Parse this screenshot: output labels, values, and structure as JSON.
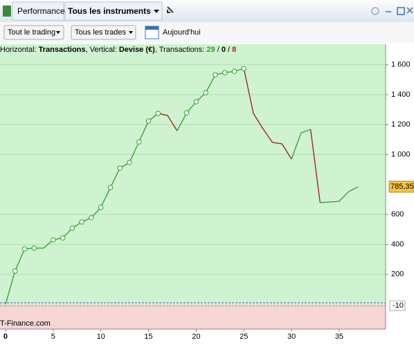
{
  "toolbar": {
    "tab": "Performance",
    "instruments": "Tous les instruments",
    "filter_trading": "Tout le trading",
    "filter_trades": "Tous les trades",
    "date": "Aujourd'hui"
  },
  "chart_data": {
    "type": "line",
    "header": {
      "h_label": "Horizontal:",
      "h_value": "Transactions",
      "v_label": "Vertical:",
      "v_value": "Devise (€)",
      "t_label": "Transactions:",
      "won": 29,
      "even": 0,
      "lost": 8
    },
    "watermark": "T-Finance.com",
    "x": [
      0,
      1,
      2,
      3,
      4,
      5,
      6,
      7,
      8,
      9,
      10,
      11,
      12,
      13,
      14,
      15,
      16,
      17,
      18,
      19,
      20,
      21,
      22,
      23,
      24,
      25,
      26,
      27,
      28,
      29,
      30,
      31,
      32,
      33,
      34,
      35,
      36,
      37
    ],
    "values": [
      0,
      222,
      370,
      375,
      375,
      430,
      443,
      508,
      550,
      578,
      647,
      780,
      910,
      947,
      1085,
      1224,
      1275,
      1261,
      1159,
      1279,
      1353,
      1413,
      1533,
      1547,
      1556,
      1575,
      1275,
      1173,
      1081,
      1072,
      970,
      1145,
      1168,
      679,
      683,
      688,
      753,
      785.35
    ],
    "last_label": "785,35",
    "lower_marker": -10,
    "up_color": "#2ca02c",
    "down_color": "#a01818",
    "xlim": [
      -0.58,
      39.87
    ],
    "ylim": [
      -166,
      1737
    ],
    "xticks": [
      0,
      5,
      10,
      15,
      20,
      25,
      30,
      35
    ],
    "yticks": [
      200,
      400,
      600,
      {
        "value": 1000,
        "label": "1 000"
      },
      {
        "value": 1200,
        "label": "1 200"
      },
      {
        "value": 1400,
        "label": "1 400"
      },
      {
        "value": 1600,
        "label": "1 600"
      }
    ],
    "grid": true
  }
}
